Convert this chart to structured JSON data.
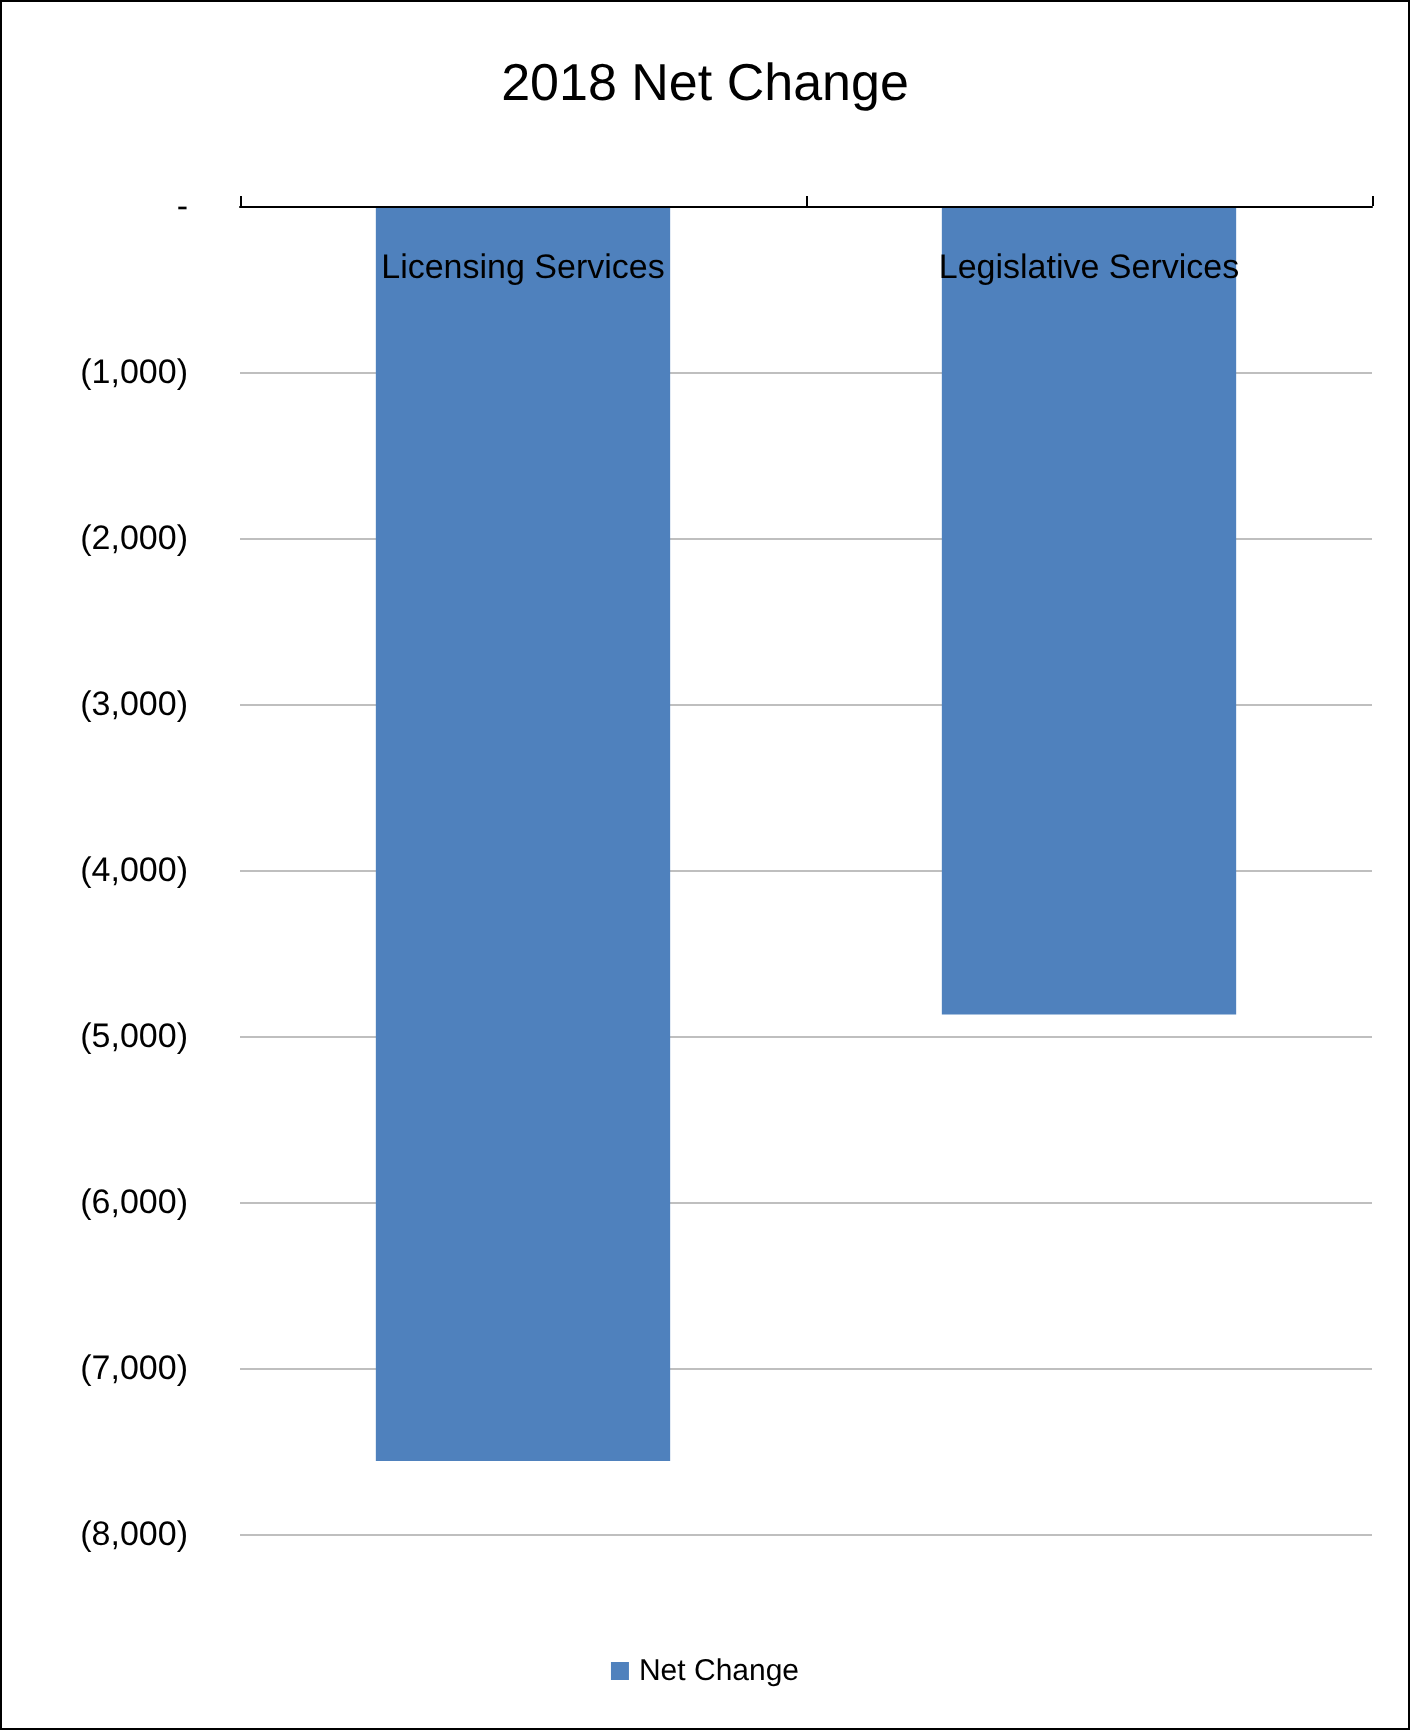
{
  "chart_data": {
    "type": "bar",
    "title": "2018 Net Change",
    "categories": [
      "Licensing Services",
      "Legislative Services"
    ],
    "series": [
      {
        "name": "Net Change",
        "color": "#4f81bd",
        "values": [
          -7560,
          -4870
        ]
      }
    ],
    "ylim": [
      -8000,
      0
    ],
    "yticks": [
      {
        "value": 0,
        "label": "-"
      },
      {
        "value": -1000,
        "label": "(1,000)"
      },
      {
        "value": -2000,
        "label": "(2,000)"
      },
      {
        "value": -3000,
        "label": "(3,000)"
      },
      {
        "value": -4000,
        "label": "(4,000)"
      },
      {
        "value": -5000,
        "label": "(5,000)"
      },
      {
        "value": -6000,
        "label": "(6,000)"
      },
      {
        "value": -7000,
        "label": "(7,000)"
      },
      {
        "value": -8000,
        "label": "(8,000)"
      }
    ],
    "grid": "y",
    "legend": "bottom"
  }
}
